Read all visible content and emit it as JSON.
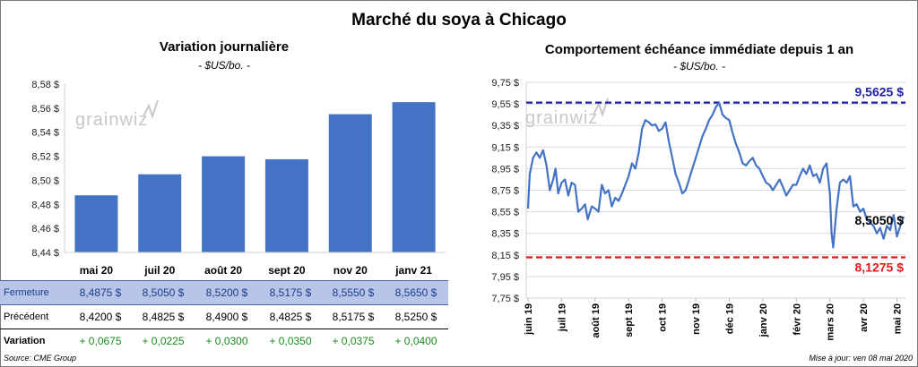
{
  "title": "Marché du soya à Chicago",
  "brand": "grainwiz",
  "footer": {
    "source": "Source: CME Group",
    "updated": "Mise à jour: ven 08 mai 2020"
  },
  "colors": {
    "bar": "#4472c4",
    "line": "#4472c4",
    "high": "#1f1fa8",
    "low": "#e01b1b",
    "variation": "#1b8c1b"
  },
  "table": {
    "rows": [
      {
        "label": "Fermeture",
        "values": [
          "8,4875  $",
          "8,5050  $",
          "8,5200  $",
          "8,5175  $",
          "8,5550  $",
          "8,5650  $"
        ]
      },
      {
        "label": "Précédent",
        "values": [
          "8,4200  $",
          "8,4825  $",
          "8,4900  $",
          "8,4825  $",
          "8,5175  $",
          "8,5250  $"
        ]
      },
      {
        "label": "Variation",
        "values": [
          "+ 0,0675",
          "+ 0,0225",
          "+ 0,0300",
          "+ 0,0350",
          "+ 0,0375",
          "+ 0,0400"
        ]
      }
    ]
  },
  "chart_data": [
    {
      "type": "bar",
      "title": "Variation  journalière",
      "unit": "- $US/bo. -",
      "categories": [
        "mai 20",
        "juil 20",
        "août 20",
        "sept 20",
        "nov 20",
        "janv 21"
      ],
      "values": [
        8.4875,
        8.505,
        8.52,
        8.5175,
        8.555,
        8.565
      ],
      "ylim": [
        8.44,
        8.58
      ],
      "yticks": [
        "8,44 $",
        "8,46 $",
        "8,48 $",
        "8,50 $",
        "8,52 $",
        "8,54 $",
        "8,56 $",
        "8,58 $"
      ],
      "grid": false
    },
    {
      "type": "line",
      "title": "Comportement  échéance immédiate depuis 1 an",
      "unit": "- $US/bo. -",
      "ylim": [
        7.75,
        9.75
      ],
      "yticks": [
        "7,75 $",
        "7,95 $",
        "8,15 $",
        "8,35 $",
        "8,55 $",
        "8,75 $",
        "8,95 $",
        "9,15 $",
        "9,35 $",
        "9,55 $",
        "9,75 $"
      ],
      "xticks": [
        "juin 19",
        "juil 19",
        "août 19",
        "sept 19",
        "oct 19",
        "nov 19",
        "déc 19",
        "janv 20",
        "févr 20",
        "mars 20",
        "avr 20",
        "mai 20"
      ],
      "grid": true,
      "reference_lines": [
        {
          "label": "9,5625 $",
          "value": 9.5625,
          "color": "#1f1fa8"
        },
        {
          "label": "8,1275 $",
          "value": 8.1275,
          "color": "#e01b1b"
        }
      ],
      "last_label": "8,5050 $",
      "x": [
        0,
        0.05,
        0.15,
        0.25,
        0.35,
        0.45,
        0.55,
        0.65,
        0.75,
        0.82,
        0.9,
        1.0,
        1.1,
        1.2,
        1.3,
        1.4,
        1.5,
        1.6,
        1.7,
        1.78,
        1.85,
        1.9,
        2.0,
        2.1,
        2.2,
        2.3,
        2.4,
        2.5,
        2.6,
        2.7,
        2.8,
        2.9,
        3.0,
        3.1,
        3.2,
        3.3,
        3.4,
        3.5,
        3.6,
        3.7,
        3.8,
        3.9,
        4.0,
        4.1,
        4.2,
        4.3,
        4.4,
        4.5,
        4.6,
        4.7,
        4.8,
        4.9,
        5.0,
        5.1,
        5.2,
        5.3,
        5.4,
        5.5,
        5.6,
        5.7,
        5.8,
        5.9,
        6.0,
        6.1,
        6.2,
        6.3,
        6.4,
        6.5,
        6.6,
        6.7,
        6.8,
        6.9,
        7.0,
        7.1,
        7.2,
        7.3,
        7.4,
        7.5,
        7.6,
        7.7,
        7.8,
        7.9,
        8.0,
        8.1,
        8.2,
        8.3,
        8.4,
        8.5,
        8.6,
        8.7,
        8.8,
        8.9,
        9.0,
        9.05,
        9.1,
        9.2,
        9.3,
        9.4,
        9.5,
        9.6,
        9.7,
        9.8,
        9.9,
        10.0,
        10.1,
        10.2,
        10.3,
        10.4,
        10.5,
        10.6,
        10.7,
        10.8,
        10.9,
        11.0,
        11.1,
        11.2
      ],
      "y": [
        8.58,
        8.9,
        9.05,
        9.1,
        9.05,
        9.12,
        8.98,
        8.75,
        8.85,
        8.95,
        8.72,
        8.82,
        8.85,
        8.7,
        8.82,
        8.8,
        8.55,
        8.58,
        8.62,
        8.48,
        8.55,
        8.6,
        8.58,
        8.55,
        8.8,
        8.72,
        8.75,
        8.6,
        8.68,
        8.65,
        8.72,
        8.8,
        8.88,
        9.0,
        8.95,
        9.1,
        9.32,
        9.4,
        9.38,
        9.35,
        9.36,
        9.3,
        9.32,
        9.38,
        9.2,
        9.05,
        8.9,
        8.82,
        8.72,
        8.75,
        8.85,
        8.95,
        9.05,
        9.15,
        9.25,
        9.32,
        9.4,
        9.45,
        9.52,
        9.56,
        9.45,
        9.42,
        9.4,
        9.28,
        9.18,
        9.1,
        9.0,
        8.98,
        9.02,
        9.05,
        8.98,
        8.95,
        8.88,
        8.82,
        8.8,
        8.75,
        8.8,
        8.85,
        8.78,
        8.7,
        8.75,
        8.8,
        8.8,
        8.88,
        8.95,
        8.9,
        8.98,
        8.88,
        8.9,
        8.82,
        8.95,
        9.0,
        8.72,
        8.35,
        8.22,
        8.58,
        8.82,
        8.85,
        8.82,
        8.88,
        8.6,
        8.62,
        8.55,
        8.58,
        8.48,
        8.45,
        8.42,
        8.35,
        8.4,
        8.3,
        8.42,
        8.38,
        8.52,
        8.32,
        8.42,
        8.505
      ]
    }
  ]
}
